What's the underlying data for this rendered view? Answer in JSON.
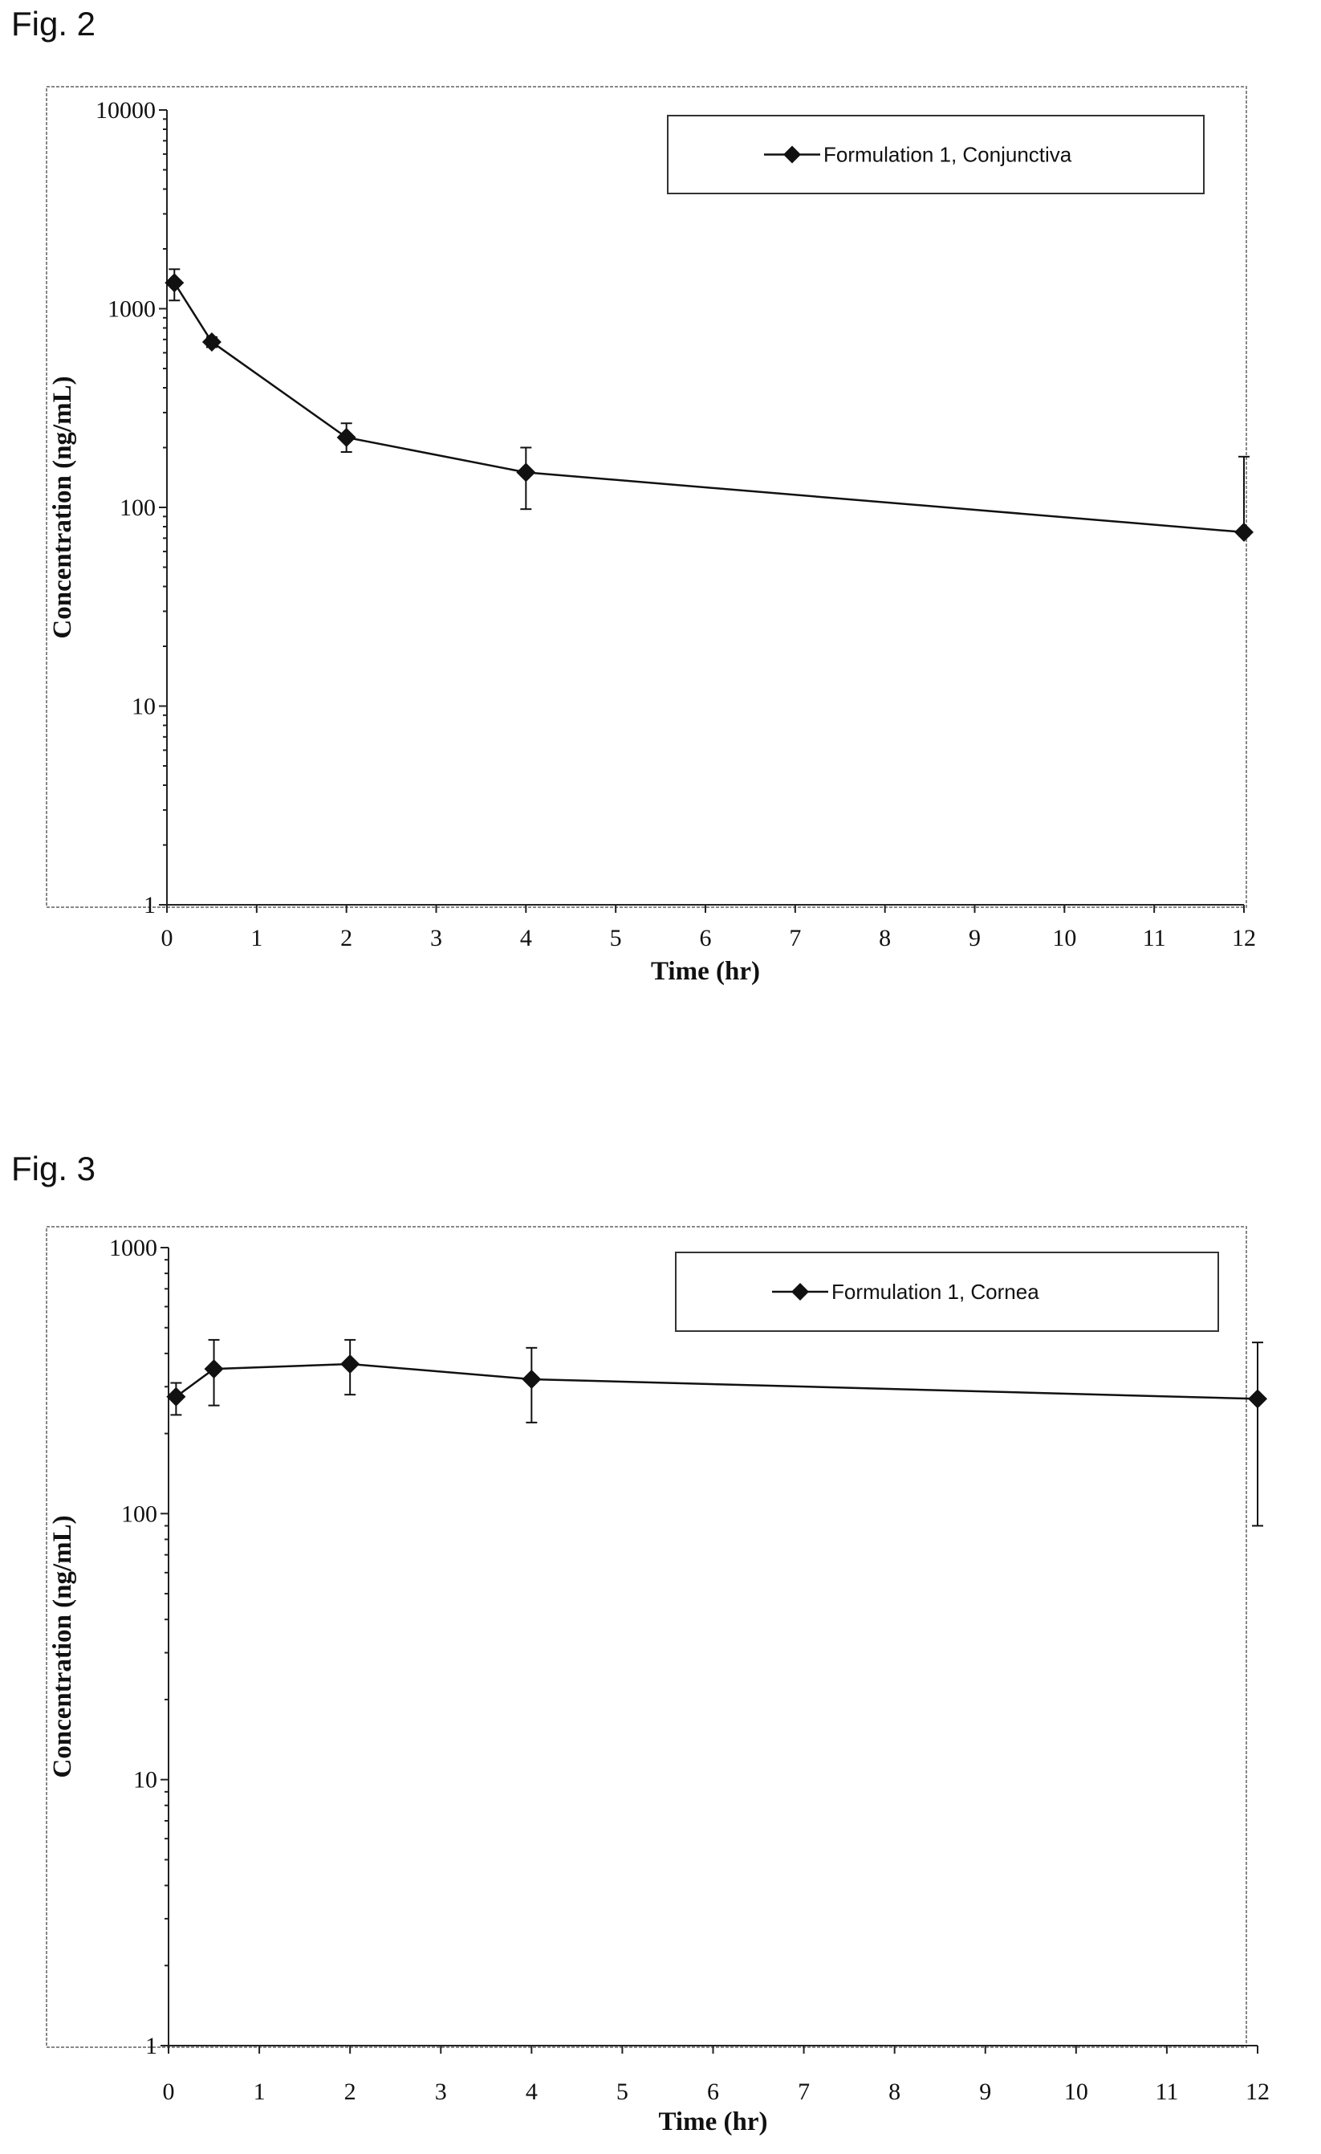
{
  "figures": {
    "fig2_label": "Fig. 2",
    "fig3_label": "Fig. 3"
  },
  "chart_data": [
    {
      "type": "line",
      "title": "",
      "xlabel": "Time (hr)",
      "ylabel": "Concentration (ng/mL)",
      "xlim": [
        0,
        12
      ],
      "ylim": [
        1,
        10000
      ],
      "yscale": "log",
      "xticks": [
        0,
        1,
        2,
        3,
        4,
        5,
        6,
        7,
        8,
        9,
        10,
        11,
        12
      ],
      "yticks": [
        1,
        10,
        100,
        1000,
        10000
      ],
      "legend_position": "top-right",
      "grid": false,
      "series": [
        {
          "name": "Formulation 1, Conjunctiva",
          "marker": "diamond",
          "color": "#111111",
          "x": [
            0.083,
            0.5,
            2,
            4,
            12
          ],
          "y": [
            1350,
            680,
            225,
            150,
            75
          ],
          "err_low": [
            1100,
            640,
            190,
            98,
            72
          ],
          "err_high": [
            1580,
            720,
            265,
            200,
            180
          ]
        }
      ]
    },
    {
      "type": "line",
      "title": "",
      "xlabel": "Time (hr)",
      "ylabel": "Concentration (ng/mL)",
      "xlim": [
        0,
        12
      ],
      "ylim": [
        1,
        1000
      ],
      "yscale": "log",
      "xticks": [
        0,
        1,
        2,
        3,
        4,
        5,
        6,
        7,
        8,
        9,
        10,
        11,
        12
      ],
      "yticks": [
        1,
        10,
        100,
        1000
      ],
      "legend_position": "top-right",
      "grid": false,
      "series": [
        {
          "name": "Formulation 1, Cornea",
          "marker": "diamond",
          "color": "#111111",
          "x": [
            0.083,
            0.5,
            2,
            4,
            12
          ],
          "y": [
            275,
            350,
            365,
            320,
            270
          ],
          "err_low": [
            235,
            255,
            280,
            220,
            90
          ],
          "err_high": [
            310,
            450,
            450,
            420,
            440
          ]
        }
      ]
    }
  ]
}
